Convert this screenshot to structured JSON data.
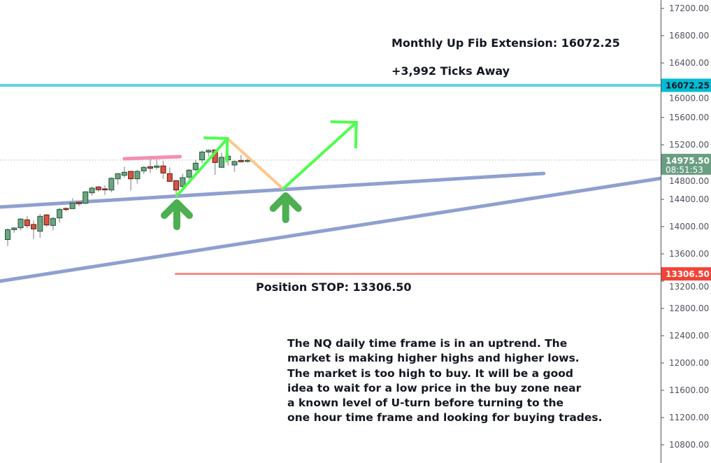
{
  "chart_data": {
    "type": "candlestick",
    "symbol": "NQ",
    "timeframe": "daily",
    "ylim": [
      10700,
      17300
    ],
    "y_ticks": [
      17200,
      16800,
      16400,
      16000,
      15600,
      15200,
      14800,
      14400,
      14000,
      13600,
      13200,
      12800,
      12400,
      12000,
      11600,
      11200,
      10800
    ],
    "y_tick_labels": [
      "17200.00",
      "16800.00",
      "16400.00",
      "16000.00",
      "15600.00",
      "15200.00",
      "14800.00",
      "14400.00",
      "14000.00",
      "13600.00",
      "13200.00",
      "12800.00",
      "12400.00",
      "12000.00",
      "11600.00",
      "11200.00",
      "10800.00"
    ],
    "candles": [
      {
        "o": 13810,
        "h": 13975,
        "l": 13715,
        "c": 13955
      },
      {
        "o": 13955,
        "h": 13990,
        "l": 13910,
        "c": 13980
      },
      {
        "o": 13983,
        "h": 14127,
        "l": 13945,
        "c": 14110
      },
      {
        "o": 14099,
        "h": 14154,
        "l": 13973,
        "c": 14014
      },
      {
        "o": 14031,
        "h": 14092,
        "l": 13819,
        "c": 13966
      },
      {
        "o": 13932,
        "h": 14185,
        "l": 13836,
        "c": 14151
      },
      {
        "o": 14171,
        "h": 14185,
        "l": 14000,
        "c": 14024
      },
      {
        "o": 14017,
        "h": 14144,
        "l": 13945,
        "c": 14120
      },
      {
        "o": 14127,
        "h": 14274,
        "l": 14058,
        "c": 14253
      },
      {
        "o": 14267,
        "h": 14280,
        "l": 14222,
        "c": 14250
      },
      {
        "o": 14263,
        "h": 14417,
        "l": 14257,
        "c": 14345
      },
      {
        "o": 14356,
        "h": 14383,
        "l": 14298,
        "c": 14335
      },
      {
        "o": 14342,
        "h": 14520,
        "l": 14328,
        "c": 14510
      },
      {
        "o": 14496,
        "h": 14588,
        "l": 14451,
        "c": 14564
      },
      {
        "o": 14581,
        "h": 14595,
        "l": 14513,
        "c": 14540
      },
      {
        "o": 14554,
        "h": 14605,
        "l": 14465,
        "c": 14540
      },
      {
        "o": 14537,
        "h": 14725,
        "l": 14503,
        "c": 14708
      },
      {
        "o": 14701,
        "h": 14786,
        "l": 14616,
        "c": 14776
      },
      {
        "o": 14752,
        "h": 14879,
        "l": 14718,
        "c": 14797
      },
      {
        "o": 14810,
        "h": 14810,
        "l": 14527,
        "c": 14701
      },
      {
        "o": 14701,
        "h": 14834,
        "l": 14629,
        "c": 14810
      },
      {
        "o": 14817,
        "h": 14889,
        "l": 14769,
        "c": 14869
      },
      {
        "o": 14879,
        "h": 14992,
        "l": 14786,
        "c": 14855
      },
      {
        "o": 14869,
        "h": 14992,
        "l": 14834,
        "c": 14889
      },
      {
        "o": 14889,
        "h": 14964,
        "l": 14698,
        "c": 14786
      },
      {
        "o": 14776,
        "h": 14869,
        "l": 14657,
        "c": 14663
      },
      {
        "o": 14674,
        "h": 14674,
        "l": 14434,
        "c": 14537
      },
      {
        "o": 14588,
        "h": 14776,
        "l": 14520,
        "c": 14718
      },
      {
        "o": 14725,
        "h": 14845,
        "l": 14663,
        "c": 14828
      },
      {
        "o": 14834,
        "h": 14981,
        "l": 14810,
        "c": 14930
      },
      {
        "o": 14978,
        "h": 15118,
        "l": 14930,
        "c": 15094
      },
      {
        "o": 15094,
        "h": 15135,
        "l": 15026,
        "c": 15118
      },
      {
        "o": 15125,
        "h": 15125,
        "l": 14759,
        "c": 14940
      },
      {
        "o": 14869,
        "h": 15084,
        "l": 14862,
        "c": 15016
      },
      {
        "o": 14978,
        "h": 15101,
        "l": 14896,
        "c": 15033
      },
      {
        "o": 14903,
        "h": 14971,
        "l": 14804,
        "c": 14954
      },
      {
        "o": 14971,
        "h": 15050,
        "l": 14937,
        "c": 14951
      },
      {
        "o": 14961,
        "h": 14998,
        "l": 14937,
        "c": 14971
      }
    ],
    "drawings": {
      "upper_trendline": {
        "from": [
          -1.2,
          14287
        ],
        "to": [
          82.7,
          14780
        ],
        "color": "#8f9fd0"
      },
      "lower_trendline": {
        "from": [
          -1.2,
          13200
        ],
        "to": [
          100.8,
          14708
        ],
        "color": "#8f9fd0"
      },
      "resistance_mark": {
        "from": [
          18.0,
          14995
        ],
        "to": [
          26.6,
          15026
        ],
        "color": "#f48fb1"
      },
      "up_leg_1": {
        "from": [
          26.1,
          14451
        ],
        "to": [
          33.9,
          15292
        ],
        "color": "#4cff4c"
      },
      "pullback_leg": {
        "from": [
          33.9,
          15292
        ],
        "to": [
          42.5,
          14554
        ],
        "color": "#ffc68a"
      },
      "up_leg_2": {
        "from": [
          42.5,
          14554
        ],
        "to": [
          53.8,
          15528
        ],
        "color": "#4cff4c"
      },
      "buy_arrows": [
        [
          26.1,
          14451
        ],
        [
          42.9,
          14554
        ]
      ],
      "arrow_color": "#4caf50"
    },
    "levels": {
      "fib_extension": {
        "value": 16072.25,
        "label": "16072.25",
        "color": "#5fd3e4",
        "tag_color": "#00bcd4"
      },
      "last_price": {
        "value": 14975.5,
        "label": "14975.50",
        "countdown": "08:51:53",
        "tag_color": "#6a9e82"
      },
      "stop": {
        "value": 13306.5,
        "label": "13306.50",
        "start_index": 25.8,
        "color": "#f28b82",
        "tag_color": "#f44336"
      }
    }
  },
  "annotations": {
    "fib": "Monthly Up Fib Extension: 16072.25",
    "ticks": "+3,992 Ticks Away",
    "stop": "Position STOP: 13306.50",
    "description": [
      "The NQ daily time frame is in an uptrend. The",
      "market is making higher highs and higher lows.",
      "The market is too high to buy. It will be a good",
      "idea to wait for a low price in the buy zone near",
      "a known level of U-turn before turning to the",
      "one hour time frame and looking for buying trades."
    ]
  }
}
